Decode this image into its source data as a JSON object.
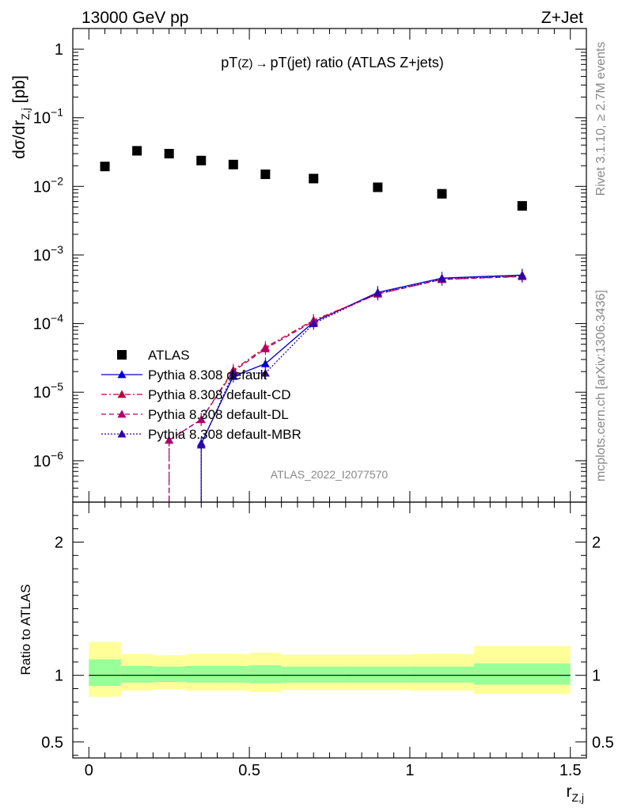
{
  "header": {
    "left": "13000 GeV pp",
    "right": "Z+Jet"
  },
  "side_labels": {
    "rivet": "Rivet 3.1.10, ≥ 2.7M events",
    "mcplots": "mcplots.cern.ch [arXiv:1306.3436]"
  },
  "chart_data": [
    {
      "type": "line",
      "title_main": "pT",
      "title_sub1": "(Z)",
      "title_arrow": "→",
      "title_rest": "pT(jet) ratio (ATLAS Z+jets)",
      "ylabel": "dσ/dr",
      "ylabel_sub": "Z,j",
      "ylabel_unit": " [pb]",
      "yscale": "log",
      "ylim": [
        2.5e-07,
        2.0
      ],
      "xlim": [
        -0.05,
        1.55
      ],
      "ytick_labels": [
        {
          "value": 1,
          "base": "1",
          "exp": ""
        },
        {
          "value": 0.1,
          "base": "10",
          "exp": "−1"
        },
        {
          "value": 0.01,
          "base": "10",
          "exp": "−2"
        },
        {
          "value": 0.001,
          "base": "10",
          "exp": "−3"
        },
        {
          "value": 0.0001,
          "base": "10",
          "exp": "−4"
        },
        {
          "value": 1e-05,
          "base": "10",
          "exp": "−5"
        },
        {
          "value": 1e-06,
          "base": "10",
          "exp": "−6"
        }
      ],
      "watermark": "ATLAS_2022_I2077570",
      "legend_position": "bottom-left",
      "series": [
        {
          "name": "ATLAS",
          "style": "data",
          "color": "#000000",
          "marker": "square",
          "x": [
            0.05,
            0.15,
            0.25,
            0.35,
            0.45,
            0.55,
            0.7,
            0.9,
            1.1,
            1.35
          ],
          "y": [
            0.0195,
            0.033,
            0.03,
            0.0238,
            0.0208,
            0.015,
            0.013,
            0.0097,
            0.0078,
            0.0052
          ]
        },
        {
          "name": "Pythia 8.308 default",
          "style": "solid",
          "color": "#0000cc",
          "marker": "triangle",
          "x": [
            0.35,
            0.45,
            0.55,
            0.7,
            0.9,
            1.1,
            1.35
          ],
          "y": [
            1.8e-06,
            1.7e-05,
            2.6e-05,
            0.000105,
            0.000285,
            0.00046,
            0.00051
          ]
        },
        {
          "name": "Pythia 8.308 default-CD",
          "style": "dashdot",
          "color": "#c0003c",
          "marker": "triangle",
          "x": [
            0.25,
            0.35,
            0.45,
            0.55,
            0.7,
            0.9,
            1.1,
            1.35
          ],
          "y": [
            2e-06,
            4e-06,
            2.1e-05,
            4.5e-05,
            0.000112,
            0.00027,
            0.00044,
            0.00049
          ]
        },
        {
          "name": "Pythia 8.308 default-DL",
          "style": "dashed",
          "color": "#b0006a",
          "marker": "triangle",
          "x": [
            0.25,
            0.35,
            0.45,
            0.55,
            0.7,
            0.9,
            1.1,
            1.35
          ],
          "y": [
            2e-06,
            4e-06,
            2e-05,
            4.3e-05,
            0.000108,
            0.00027,
            0.00044,
            0.000485
          ]
        },
        {
          "name": "Pythia 8.308 default-MBR",
          "style": "dotted",
          "color": "#3300aa",
          "marker": "triangle",
          "x": [
            0.35,
            0.45,
            0.55,
            0.7,
            0.9,
            1.1,
            1.35
          ],
          "y": [
            1.7e-06,
            1.9e-05,
            1.9e-05,
            0.0001,
            0.00028,
            0.00045,
            0.0005
          ]
        }
      ]
    },
    {
      "type": "area",
      "ylabel": "Ratio to ATLAS",
      "xlabel": "r",
      "xlabel_sub": "Z,j",
      "xlim": [
        -0.05,
        1.55
      ],
      "ylim": [
        0.38,
        2.3
      ],
      "ytick_labels": [
        "0.5",
        "1",
        "2"
      ],
      "ytick_values": [
        0.5,
        1,
        2
      ],
      "xtick_labels": [
        "0",
        "0.5",
        "1",
        "1.5"
      ],
      "xtick_values": [
        0,
        0.5,
        1,
        1.5
      ],
      "reference_line": 1.0,
      "band_colors": {
        "inner": "#99ff99",
        "outer": "#ffff99"
      },
      "bins": [
        {
          "lo": 0.0,
          "hi": 0.1,
          "inner": [
            0.92,
            1.12
          ],
          "outer": [
            0.84,
            1.25
          ]
        },
        {
          "lo": 0.1,
          "hi": 0.2,
          "inner": [
            0.945,
            1.07
          ],
          "outer": [
            0.885,
            1.16
          ]
        },
        {
          "lo": 0.2,
          "hi": 0.3,
          "inner": [
            0.95,
            1.065
          ],
          "outer": [
            0.895,
            1.15
          ]
        },
        {
          "lo": 0.3,
          "hi": 0.4,
          "inner": [
            0.945,
            1.07
          ],
          "outer": [
            0.885,
            1.16
          ]
        },
        {
          "lo": 0.4,
          "hi": 0.5,
          "inner": [
            0.945,
            1.07
          ],
          "outer": [
            0.885,
            1.16
          ]
        },
        {
          "lo": 0.5,
          "hi": 0.6,
          "inner": [
            0.94,
            1.075
          ],
          "outer": [
            0.875,
            1.17
          ]
        },
        {
          "lo": 0.6,
          "hi": 0.8,
          "inner": [
            0.945,
            1.065
          ],
          "outer": [
            0.89,
            1.155
          ]
        },
        {
          "lo": 0.8,
          "hi": 1.0,
          "inner": [
            0.945,
            1.065
          ],
          "outer": [
            0.89,
            1.155
          ]
        },
        {
          "lo": 1.0,
          "hi": 1.2,
          "inner": [
            0.945,
            1.065
          ],
          "outer": [
            0.885,
            1.16
          ]
        },
        {
          "lo": 1.2,
          "hi": 1.5,
          "inner": [
            0.93,
            1.09
          ],
          "outer": [
            0.86,
            1.22
          ]
        }
      ]
    }
  ]
}
